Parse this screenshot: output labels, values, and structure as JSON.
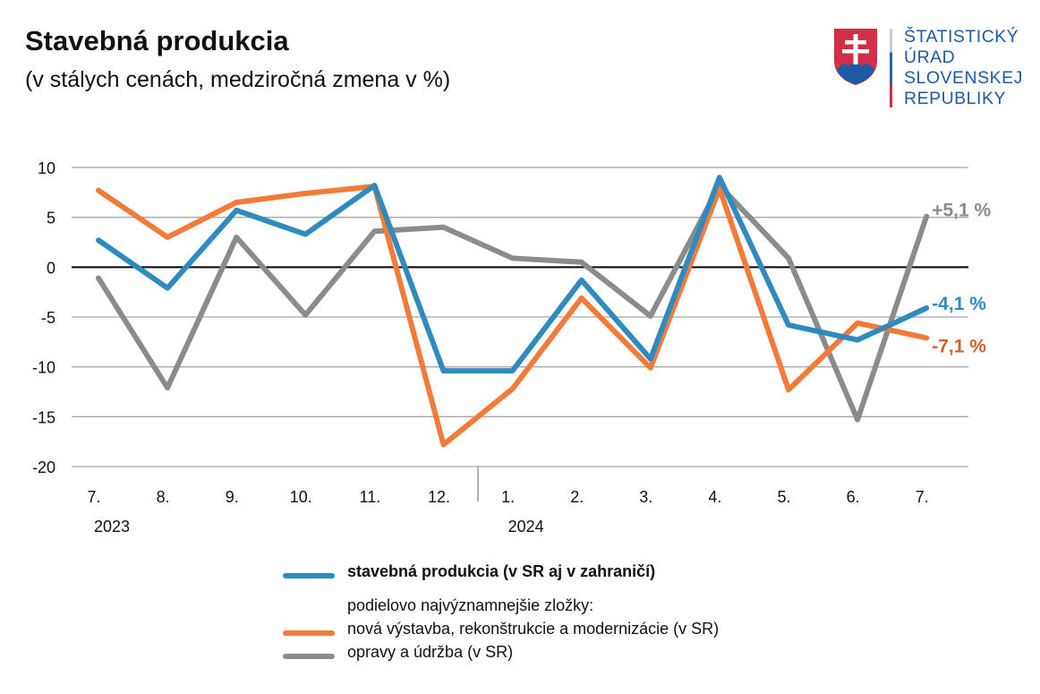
{
  "header": {
    "title": "Stavebná produkcia",
    "subtitle": "(v stálych cenách, medziročná zmena v %)"
  },
  "logo": {
    "lines": [
      "ŠTATISTICKÝ",
      "ÚRAD",
      "SLOVENSKEJ",
      "REPUBLIKY"
    ]
  },
  "chart_data": {
    "type": "line",
    "title": "Stavebná produkcia",
    "subtitle": "(v stálych cenách, medziročná zmena v %)",
    "categories": [
      "7.",
      "8.",
      "9.",
      "10.",
      "11.",
      "12.",
      "1.",
      "2.",
      "3.",
      "4.",
      "5.",
      "6.",
      "7."
    ],
    "year_labels": [
      {
        "label": "2023",
        "index": 0
      },
      {
        "label": "2024",
        "index": 6
      }
    ],
    "ylim": [
      -20,
      10
    ],
    "yticks": [
      10,
      5,
      0,
      -5,
      -10,
      -15,
      -20
    ],
    "grid": true,
    "legend_position": "bottom",
    "series": [
      {
        "name": "opravy a údržba (v SR)",
        "color": "#8A8C8C",
        "values": [
          -1.1,
          -12.1,
          3.0,
          -4.8,
          3.6,
          4.0,
          0.9,
          0.5,
          -4.9,
          8.2,
          0.9,
          -15.3,
          5.1
        ],
        "end_label": "+5,1 %",
        "label_color": "#8A8C8C"
      },
      {
        "name": "nová výstavba, rekonštrukcie a modernizácie (v SR)",
        "color": "#F47A38",
        "values": [
          7.7,
          3.0,
          6.5,
          7.4,
          8.1,
          -17.8,
          -12.2,
          -3.1,
          -10.1,
          7.9,
          -12.3,
          -5.6,
          -7.1
        ],
        "end_label": "-7,1 %",
        "label_color": "#D2622C"
      },
      {
        "name": "stavebná produkcia (v SR aj v zahraničí)",
        "color": "#2E8BC0",
        "values": [
          2.7,
          -2.1,
          5.7,
          3.3,
          8.2,
          -10.4,
          -10.4,
          -1.3,
          -9.2,
          9.0,
          -5.8,
          -7.3,
          -4.1
        ],
        "end_label": "-4,1 %",
        "label_color": "#2E8BC0"
      }
    ]
  },
  "legend": {
    "main": "stavebná produkcia (v SR aj v zahraničí)",
    "subheading": "podielovo najvýznamnejšie zložky:",
    "orange": "nová výstavba, rekonštrukcie a modernizácie (v SR)",
    "gray": "opravy a údržba (v SR)"
  }
}
